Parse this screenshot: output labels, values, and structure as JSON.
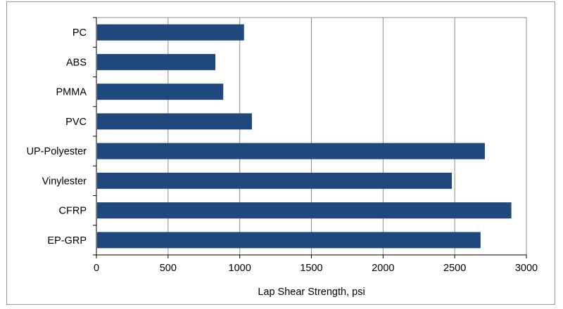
{
  "chart_data": {
    "type": "bar",
    "orientation": "horizontal",
    "title": "",
    "xlabel": "Lap Shear Strength, psi",
    "ylabel": "",
    "categories": [
      "PC",
      "ABS",
      "PMMA",
      "PVC",
      "UP-Polyester",
      "Vinylester",
      "CFRP",
      "EP-GRP"
    ],
    "values": [
      1030,
      830,
      885,
      1085,
      2710,
      2480,
      2895,
      2680
    ],
    "xlim": [
      0,
      3000
    ],
    "xticks": [
      0,
      500,
      1000,
      1500,
      2000,
      2500,
      3000
    ],
    "grid": "vertical",
    "legend": "none",
    "colors": {
      "bar": "#1f497d",
      "grid": "#8c8c8c",
      "axis": "#000000",
      "frame": "#9a9a9a"
    }
  }
}
